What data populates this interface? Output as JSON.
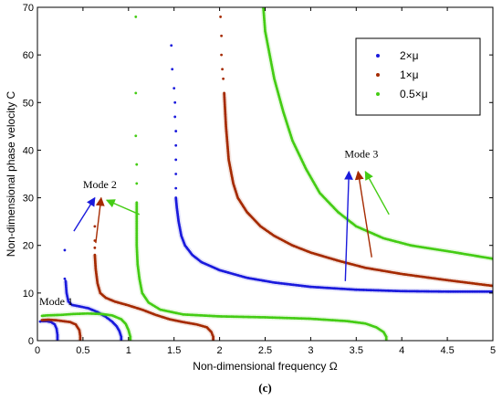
{
  "chart_data": {
    "type": "scatter",
    "xlabel": "Non-dimensional frequency Ω",
    "ylabel": "Non-dimensional phase velocity C",
    "xlim": [
      0,
      5
    ],
    "ylim": [
      0,
      70
    ],
    "xticks": [
      "0",
      "0.5",
      "1",
      "1.5",
      "2",
      "2.5",
      "3",
      "3.5",
      "4",
      "4.5",
      "5"
    ],
    "yticks": [
      "0",
      "10",
      "20",
      "30",
      "40",
      "50",
      "60",
      "70"
    ],
    "grid": false,
    "legend_position": "top-right",
    "caption": "(c)",
    "series": [
      {
        "name": "2×μ",
        "color": "#1a1adc",
        "curves": [
          [
            [
              0.22,
              0
            ],
            [
              0.22,
              1.2
            ],
            [
              0.21,
              2.5
            ],
            [
              0.19,
              3.4
            ],
            [
              0.15,
              3.9
            ],
            [
              0.1,
              4.1
            ],
            [
              0.05,
              4.1
            ],
            [
              0.03,
              4.0
            ]
          ],
          [
            [
              0.92,
              0
            ],
            [
              0.92,
              0.8
            ],
            [
              0.9,
              2
            ],
            [
              0.87,
              3
            ],
            [
              0.82,
              4
            ],
            [
              0.75,
              5
            ],
            [
              0.66,
              6
            ],
            [
              0.56,
              6.8
            ],
            [
              0.46,
              7.2
            ],
            [
              0.38,
              7.5
            ],
            [
              0.34,
              8.2
            ],
            [
              0.32,
              10
            ],
            [
              0.31,
              12.5
            ]
          ],
          [
            [
              1.52,
              30
            ],
            [
              1.53,
              28
            ],
            [
              1.55,
              25
            ],
            [
              1.58,
              22
            ],
            [
              1.62,
              20
            ],
            [
              1.7,
              18
            ],
            [
              1.8,
              16.5
            ],
            [
              2,
              14.8
            ],
            [
              2.3,
              13.2
            ],
            [
              2.6,
              12.2
            ],
            [
              3,
              11.3
            ],
            [
              3.5,
              10.7
            ],
            [
              4,
              10.4
            ],
            [
              4.5,
              10.3
            ],
            [
              5,
              10.3
            ]
          ]
        ],
        "scattered": [
          [
            0.3,
            19
          ],
          [
            0.3,
            13
          ],
          [
            1.47,
            62
          ],
          [
            1.48,
            57
          ],
          [
            1.5,
            53
          ],
          [
            1.51,
            50
          ],
          [
            1.51,
            47
          ],
          [
            1.52,
            44
          ],
          [
            1.52,
            41
          ],
          [
            1.52,
            38
          ],
          [
            1.52,
            35
          ],
          [
            1.52,
            32
          ]
        ]
      },
      {
        "name": "1×μ",
        "color": "#a52a00",
        "curves": [
          [
            [
              0.47,
              0
            ],
            [
              0.47,
              1
            ],
            [
              0.46,
              2.2
            ],
            [
              0.42,
              3.4
            ],
            [
              0.36,
              3.9
            ],
            [
              0.28,
              4.1
            ],
            [
              0.2,
              4.3
            ],
            [
              0.12,
              4.4
            ],
            [
              0.05,
              4.3
            ]
          ],
          [
            [
              1.93,
              0
            ],
            [
              1.93,
              0.8
            ],
            [
              1.91,
              1.8
            ],
            [
              1.86,
              2.8
            ],
            [
              1.75,
              3.4
            ],
            [
              1.6,
              3.9
            ],
            [
              1.45,
              4.5
            ],
            [
              1.3,
              5.4
            ],
            [
              1.15,
              6.5
            ],
            [
              1,
              7.4
            ],
            [
              0.85,
              8.2
            ],
            [
              0.75,
              9
            ],
            [
              0.69,
              10
            ],
            [
              0.66,
              12
            ],
            [
              0.64,
              15
            ],
            [
              0.63,
              18
            ]
          ],
          [
            [
              2.05,
              52
            ],
            [
              2.07,
              45
            ],
            [
              2.1,
              38
            ],
            [
              2.15,
              33
            ],
            [
              2.2,
              30
            ],
            [
              2.3,
              27
            ],
            [
              2.45,
              24
            ],
            [
              2.6,
              22
            ],
            [
              2.8,
              20
            ],
            [
              3,
              18.5
            ],
            [
              3.3,
              16.8
            ],
            [
              3.6,
              15.3
            ],
            [
              4,
              14
            ],
            [
              4.5,
              12.7
            ],
            [
              5,
              11.5
            ]
          ]
        ],
        "scattered": [
          [
            2.01,
            68
          ],
          [
            2.02,
            64
          ],
          [
            2.02,
            60
          ],
          [
            2.03,
            57
          ],
          [
            2.04,
            55
          ],
          [
            0.63,
            24
          ],
          [
            0.63,
            21
          ],
          [
            0.63,
            19.5
          ]
        ]
      },
      {
        "name": "0.5×μ",
        "color": "#44cc14",
        "curves": [
          [
            [
              0.05,
              5.2
            ],
            [
              0.1,
              5.3
            ],
            [
              0.25,
              5.4
            ],
            [
              0.4,
              5.6
            ],
            [
              0.55,
              5.7
            ],
            [
              0.7,
              5.6
            ],
            [
              0.82,
              5.3
            ],
            [
              0.92,
              4.5
            ],
            [
              0.97,
              3.5
            ],
            [
              1,
              2.2
            ],
            [
              1.02,
              0.8
            ],
            [
              1.02,
              0
            ]
          ],
          [
            [
              3.83,
              0
            ],
            [
              3.83,
              0.8
            ],
            [
              3.8,
              1.8
            ],
            [
              3.72,
              2.8
            ],
            [
              3.6,
              3.6
            ],
            [
              3.4,
              4.1
            ],
            [
              3,
              4.6
            ],
            [
              2.5,
              4.9
            ],
            [
              2,
              5.1
            ],
            [
              1.6,
              5.5
            ],
            [
              1.35,
              6.5
            ],
            [
              1.22,
              8
            ],
            [
              1.15,
              10
            ],
            [
              1.12,
              13
            ],
            [
              1.1,
              16
            ],
            [
              1.09,
              20
            ],
            [
              1.09,
              25
            ],
            [
              1.09,
              29
            ]
          ],
          [
            [
              2.48,
              70
            ],
            [
              2.5,
              65
            ],
            [
              2.55,
              60
            ],
            [
              2.6,
              55
            ],
            [
              2.7,
              48
            ],
            [
              2.8,
              42
            ],
            [
              2.95,
              36
            ],
            [
              3.1,
              31
            ],
            [
              3.3,
              27
            ],
            [
              3.5,
              24
            ],
            [
              3.8,
              21.5
            ],
            [
              4.1,
              20
            ],
            [
              4.5,
              18.8
            ],
            [
              5,
              17.2
            ]
          ]
        ],
        "scattered": [
          [
            1.08,
            68
          ],
          [
            1.08,
            52
          ],
          [
            1.08,
            43
          ],
          [
            1.09,
            37
          ],
          [
            1.09,
            33
          ]
        ]
      }
    ],
    "annotations": [
      {
        "text": "Mode 1",
        "x": 0.0,
        "y": 7.5
      },
      {
        "text": "Mode 2",
        "x": 0.48,
        "y": 32
      },
      {
        "text": "Mode 3",
        "x": 3.35,
        "y": 38.5
      }
    ],
    "arrows": [
      {
        "color": "#1a1adc",
        "from": [
          0.4,
          23
        ],
        "to": [
          0.63,
          30
        ]
      },
      {
        "color": "#a52a00",
        "from": [
          0.64,
          20.5
        ],
        "to": [
          0.7,
          30
        ]
      },
      {
        "color": "#44cc14",
        "from": [
          1.12,
          26.5
        ],
        "to": [
          0.76,
          29.5
        ]
      },
      {
        "color": "#1a1adc",
        "from": [
          3.38,
          12.5
        ],
        "to": [
          3.42,
          35.5
        ]
      },
      {
        "color": "#a52a00",
        "from": [
          3.67,
          17.5
        ],
        "to": [
          3.52,
          35.5
        ]
      },
      {
        "color": "#44cc14",
        "from": [
          3.86,
          26.5
        ],
        "to": [
          3.6,
          35.5
        ]
      }
    ]
  }
}
